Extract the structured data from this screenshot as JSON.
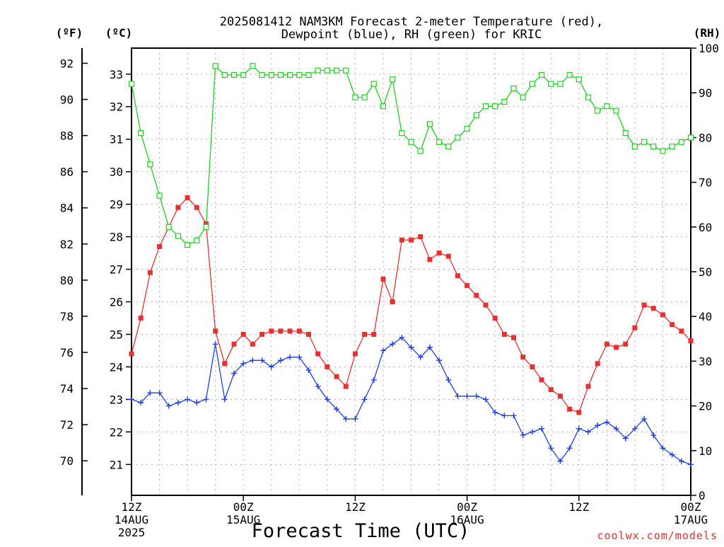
{
  "chart_data": {
    "type": "line",
    "title": [
      "2025081412 NAM3KM Forecast 2-meter Temperature (red),",
      "Dewpoint (blue), RH (green) for KRIC"
    ],
    "xlabel": "Forecast Time (UTC)",
    "credit": "coolwx.com/models",
    "unit_labels": {
      "fahrenheit": "(ºF)",
      "celsius": "(ºC)",
      "rh": "(RH)"
    },
    "x_ticks": [
      {
        "hour": 0,
        "lines": [
          "12Z",
          "14AUG",
          "2025"
        ]
      },
      {
        "hour": 12,
        "lines": [
          "00Z",
          "15AUG"
        ]
      },
      {
        "hour": 24,
        "lines": [
          "12Z"
        ]
      },
      {
        "hour": 36,
        "lines": [
          "00Z",
          "16AUG"
        ]
      },
      {
        "hour": 48,
        "lines": [
          "12Z"
        ]
      },
      {
        "hour": 60,
        "lines": [
          "00Z",
          "17AUG"
        ]
      }
    ],
    "xlim": [
      0,
      60
    ],
    "ylim_celsius": [
      20.05,
      33.8
    ],
    "ylim_rh": [
      0,
      100
    ],
    "y_ticks_fahrenheit": [
      "70",
      "72",
      "74",
      "76",
      "78",
      "80",
      "82",
      "84",
      "86",
      "88",
      "90",
      "92"
    ],
    "y_ticks_celsius": [
      "21",
      "22",
      "23",
      "24",
      "25",
      "26",
      "27",
      "28",
      "29",
      "30",
      "31",
      "32",
      "33"
    ],
    "y_ticks_rh": [
      "0",
      "10",
      "20",
      "30",
      "40",
      "50",
      "60",
      "70",
      "80",
      "90",
      "100"
    ],
    "grid": true,
    "hours": [
      0,
      1,
      2,
      3,
      4,
      5,
      6,
      7,
      8,
      9,
      10,
      11,
      12,
      13,
      14,
      15,
      16,
      17,
      18,
      19,
      20,
      21,
      22,
      23,
      24,
      25,
      26,
      27,
      28,
      29,
      30,
      31,
      32,
      33,
      34,
      35,
      36,
      37,
      38,
      39,
      40,
      41,
      42,
      43,
      44,
      45,
      46,
      47,
      48,
      49,
      50,
      51,
      52,
      53,
      54,
      55,
      56,
      57,
      58,
      59,
      60
    ],
    "series": [
      {
        "name": "Temperature",
        "unit": "C",
        "color": "#e83030",
        "marker": "filled-square",
        "values": [
          24.4,
          25.5,
          26.9,
          27.7,
          28.3,
          28.9,
          29.2,
          28.9,
          28.4,
          25.1,
          24.1,
          24.7,
          25.0,
          24.7,
          25.0,
          25.1,
          25.1,
          25.1,
          25.1,
          25.0,
          24.4,
          24.0,
          23.7,
          23.4,
          24.4,
          25.0,
          25.0,
          26.7,
          26.0,
          27.9,
          27.9,
          28.0,
          27.3,
          27.5,
          27.4,
          26.8,
          26.5,
          26.2,
          25.9,
          25.5,
          25.0,
          24.9,
          24.3,
          24.0,
          23.6,
          23.3,
          23.1,
          22.7,
          22.6,
          23.4,
          24.1,
          24.7,
          24.6,
          24.7,
          25.2,
          25.9,
          25.8,
          25.6,
          25.3,
          25.1,
          24.8
        ]
      },
      {
        "name": "Dewpoint",
        "unit": "C",
        "color": "#2040e0",
        "marker": "plus",
        "values": [
          23.0,
          22.9,
          23.2,
          23.2,
          22.8,
          22.9,
          23.0,
          22.9,
          23.0,
          24.7,
          23.0,
          23.8,
          24.1,
          24.2,
          24.2,
          24.0,
          24.2,
          24.3,
          24.3,
          23.9,
          23.4,
          23.0,
          22.7,
          22.4,
          22.4,
          23.0,
          23.6,
          24.5,
          24.7,
          24.9,
          24.6,
          24.3,
          24.6,
          24.2,
          23.6,
          23.1,
          23.1,
          23.1,
          23.0,
          22.6,
          22.5,
          22.5,
          21.9,
          22.0,
          22.1,
          21.5,
          21.1,
          21.5,
          22.1,
          22.0,
          22.2,
          22.3,
          22.1,
          21.8,
          22.1,
          22.4,
          21.9,
          21.5,
          21.3,
          21.1,
          21.0
        ]
      },
      {
        "name": "RH",
        "unit": "%",
        "color": "#20d020",
        "marker": "open-square",
        "values": [
          92,
          81,
          74,
          67,
          60,
          58,
          56,
          57,
          60,
          96,
          94,
          94,
          94,
          96,
          94,
          94,
          94,
          94,
          94,
          94,
          95,
          95,
          95,
          95,
          89,
          89,
          92,
          87,
          93,
          81,
          79,
          77,
          83,
          79,
          78,
          80,
          82,
          85,
          87,
          87,
          88,
          91,
          89,
          92,
          94,
          92,
          92,
          94,
          93,
          89,
          86,
          87,
          86,
          81,
          78,
          79,
          78,
          77,
          78,
          79,
          80
        ]
      }
    ]
  }
}
